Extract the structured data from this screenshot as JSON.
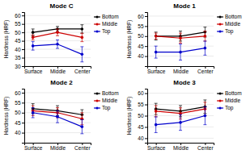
{
  "chart_data": [
    {
      "type": "line",
      "title": "Mode C",
      "y_label": "Hardness (HRF)",
      "categories": [
        "Surface",
        "Middle",
        "Center"
      ],
      "series": [
        {
          "name": "Bottom",
          "color": "#000000",
          "values": [
            50,
            52,
            52
          ],
          "errors": [
            2.0,
            1.5,
            2.5
          ]
        },
        {
          "name": "Middle",
          "color": "#cc0000",
          "values": [
            47,
            50,
            47
          ],
          "errors": [
            1.5,
            2.0,
            2.5
          ]
        },
        {
          "name": "Top",
          "color": "#0000cc",
          "values": [
            42,
            43,
            37
          ],
          "errors": [
            2.5,
            2.5,
            4.5
          ]
        }
      ],
      "ylim": [
        30,
        62
      ],
      "yticks": [
        30,
        35,
        40,
        45,
        50,
        55,
        60
      ],
      "grid": true,
      "legend": "right",
      "marker": "circle"
    },
    {
      "type": "line",
      "title": "Mode 1",
      "y_label": "Hardness (HRF)",
      "categories": [
        "Surface",
        "Middle",
        "Center"
      ],
      "series": [
        {
          "name": "Bottom",
          "color": "#000000",
          "values": [
            50,
            50,
            52
          ],
          "errors": [
            2.0,
            2.5,
            2.5
          ]
        },
        {
          "name": "Middle",
          "color": "#cc0000",
          "values": [
            50,
            49,
            50
          ],
          "errors": [
            1.5,
            2.5,
            2.5
          ]
        },
        {
          "name": "Top",
          "color": "#0000cc",
          "values": [
            42,
            42,
            44
          ],
          "errors": [
            3.0,
            4.0,
            3.5
          ]
        }
      ],
      "ylim": [
        35,
        62
      ],
      "yticks": [
        40,
        45,
        50,
        55,
        60
      ],
      "grid": true,
      "legend": "right",
      "marker": "circle"
    },
    {
      "type": "line",
      "title": "Mode 2",
      "y_label": "Hardness (HRF)",
      "categories": [
        "Surface",
        "Middle",
        "Center"
      ],
      "series": [
        {
          "name": "Bottom",
          "color": "#000000",
          "values": [
            52,
            51,
            49
          ],
          "errors": [
            2.5,
            2.5,
            2.5
          ]
        },
        {
          "name": "Middle",
          "color": "#cc0000",
          "values": [
            51,
            50,
            47
          ],
          "errors": [
            2.5,
            2.5,
            3.0
          ]
        },
        {
          "name": "Top",
          "color": "#0000cc",
          "values": [
            50,
            48,
            43
          ],
          "errors": [
            2.5,
            3.0,
            3.5
          ]
        }
      ],
      "ylim": [
        35,
        62
      ],
      "yticks": [
        40,
        45,
        50,
        55,
        60
      ],
      "grid": true,
      "legend": "right",
      "marker": "circle"
    },
    {
      "type": "line",
      "title": "Mode 3",
      "y_label": "Hardness (HRF)",
      "categories": [
        "Surface",
        "Middle",
        "Center"
      ],
      "series": [
        {
          "name": "Bottom",
          "color": "#000000",
          "values": [
            53,
            52,
            54
          ],
          "errors": [
            2.5,
            2.5,
            3.0
          ]
        },
        {
          "name": "Middle",
          "color": "#cc0000",
          "values": [
            52,
            51,
            53
          ],
          "errors": [
            2.5,
            2.5,
            3.0
          ]
        },
        {
          "name": "Top",
          "color": "#0000cc",
          "values": [
            46,
            47,
            50
          ],
          "errors": [
            3.5,
            3.5,
            4.0
          ]
        }
      ],
      "ylim": [
        38,
        62
      ],
      "yticks": [
        40,
        45,
        50,
        55,
        60
      ],
      "grid": true,
      "legend": "right",
      "marker": "circle"
    }
  ]
}
